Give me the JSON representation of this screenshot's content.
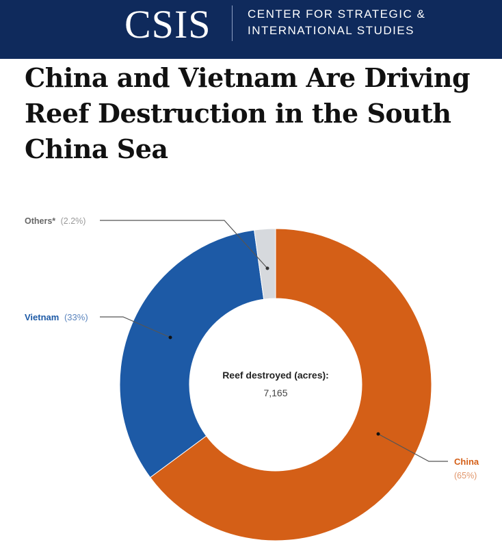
{
  "header": {
    "logo": "CSIS",
    "org_line1": "CENTER FOR STRATEGIC &",
    "org_line2": "INTERNATIONAL STUDIES"
  },
  "title": "China and Vietnam Are Driving Reef Destruction in the South China Sea",
  "chart_data": {
    "type": "pie",
    "title": "China and Vietnam Are Driving Reef Destruction in the South China Sea",
    "center_label": "Reef destroyed (acres):",
    "center_value": "7,165",
    "slices": [
      {
        "name": "China",
        "pct_label": "(65%)",
        "value": 65,
        "color": "#d45f17"
      },
      {
        "name": "Vietnam",
        "pct_label": "(33%)",
        "value": 33,
        "color": "#1d5aa6"
      },
      {
        "name": "Others*",
        "pct_label": "(2.2%)",
        "value": 2.2,
        "color": "#d6d9dd"
      }
    ]
  }
}
